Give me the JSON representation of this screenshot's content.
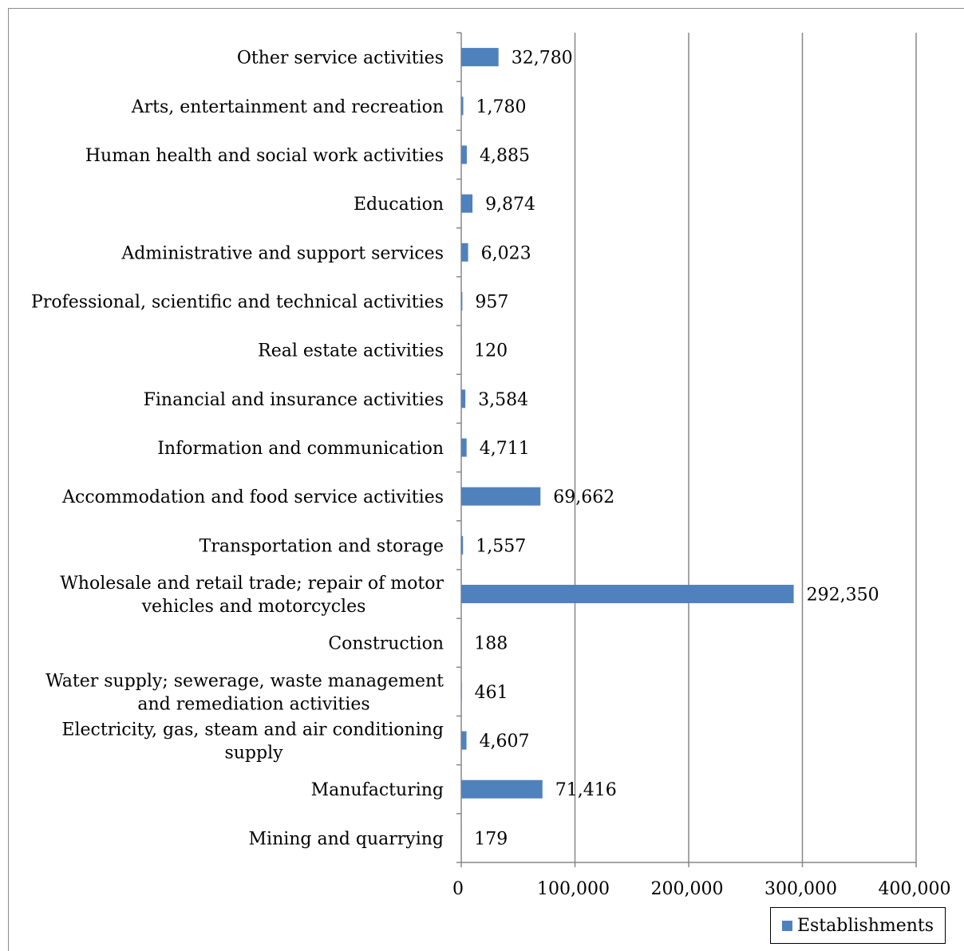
{
  "chart_data": {
    "type": "bar",
    "orientation": "horizontal",
    "categories": [
      "Mining and quarrying",
      "Manufacturing",
      "Electricity, gas, steam and air conditioning supply",
      "Water supply; sewerage, waste management and remediation activities",
      "Construction",
      "Wholesale and retail trade; repair of motor vehicles and motorcycles",
      "Transportation and storage",
      "Accommodation and food service activities",
      "Information and communication",
      "Financial and insurance activities",
      "Real estate activities",
      "Professional, scientific and technical activities",
      "Administrative and support services",
      "Education",
      "Human health and social work activities",
      "Arts, entertainment and recreation",
      "Other service activities"
    ],
    "category_lines": [
      [
        "Mining and quarrying"
      ],
      [
        "Manufacturing"
      ],
      [
        "Electricity, gas, steam and air conditioning",
        "supply"
      ],
      [
        "Water supply; sewerage, waste management",
        "and remediation activities"
      ],
      [
        "Construction"
      ],
      [
        "Wholesale and retail trade; repair of motor",
        "vehicles and motorcycles"
      ],
      [
        "Transportation and storage"
      ],
      [
        "Accommodation and food service activities"
      ],
      [
        "Information and communication"
      ],
      [
        "Financial and insurance activities"
      ],
      [
        "Real estate activities"
      ],
      [
        "Professional, scientific and technical activities"
      ],
      [
        "Administrative and support services"
      ],
      [
        "Education"
      ],
      [
        "Human health and social work activities"
      ],
      [
        "Arts, entertainment and recreation"
      ],
      [
        "Other service activities"
      ]
    ],
    "series": [
      {
        "name": "Establishments",
        "values": [
          179,
          71416,
          4607,
          461,
          188,
          292350,
          1557,
          69662,
          4711,
          3584,
          120,
          957,
          6023,
          9874,
          4885,
          1780,
          32780
        ],
        "labels": [
          "179",
          "71,416",
          "4,607",
          "461",
          "188",
          "292,350",
          "1,557",
          "69,662",
          "4,711",
          "3,584",
          "120",
          "957",
          "6,023",
          "9,874",
          "4,885",
          "1,780",
          "32,780"
        ]
      }
    ],
    "xlim": [
      0,
      400000
    ],
    "x_ticks": [
      0,
      100000,
      200000,
      300000,
      400000
    ],
    "x_tick_labels": [
      "0",
      "100,000",
      "200,000",
      "300,000",
      "400,000"
    ],
    "title": "",
    "xlabel": "",
    "ylabel": "",
    "grid": "vertical",
    "legend_position": "bottom-right",
    "colors": {
      "bar": "#4f81bd",
      "grid": "#878787",
      "axis": "#878787"
    }
  }
}
